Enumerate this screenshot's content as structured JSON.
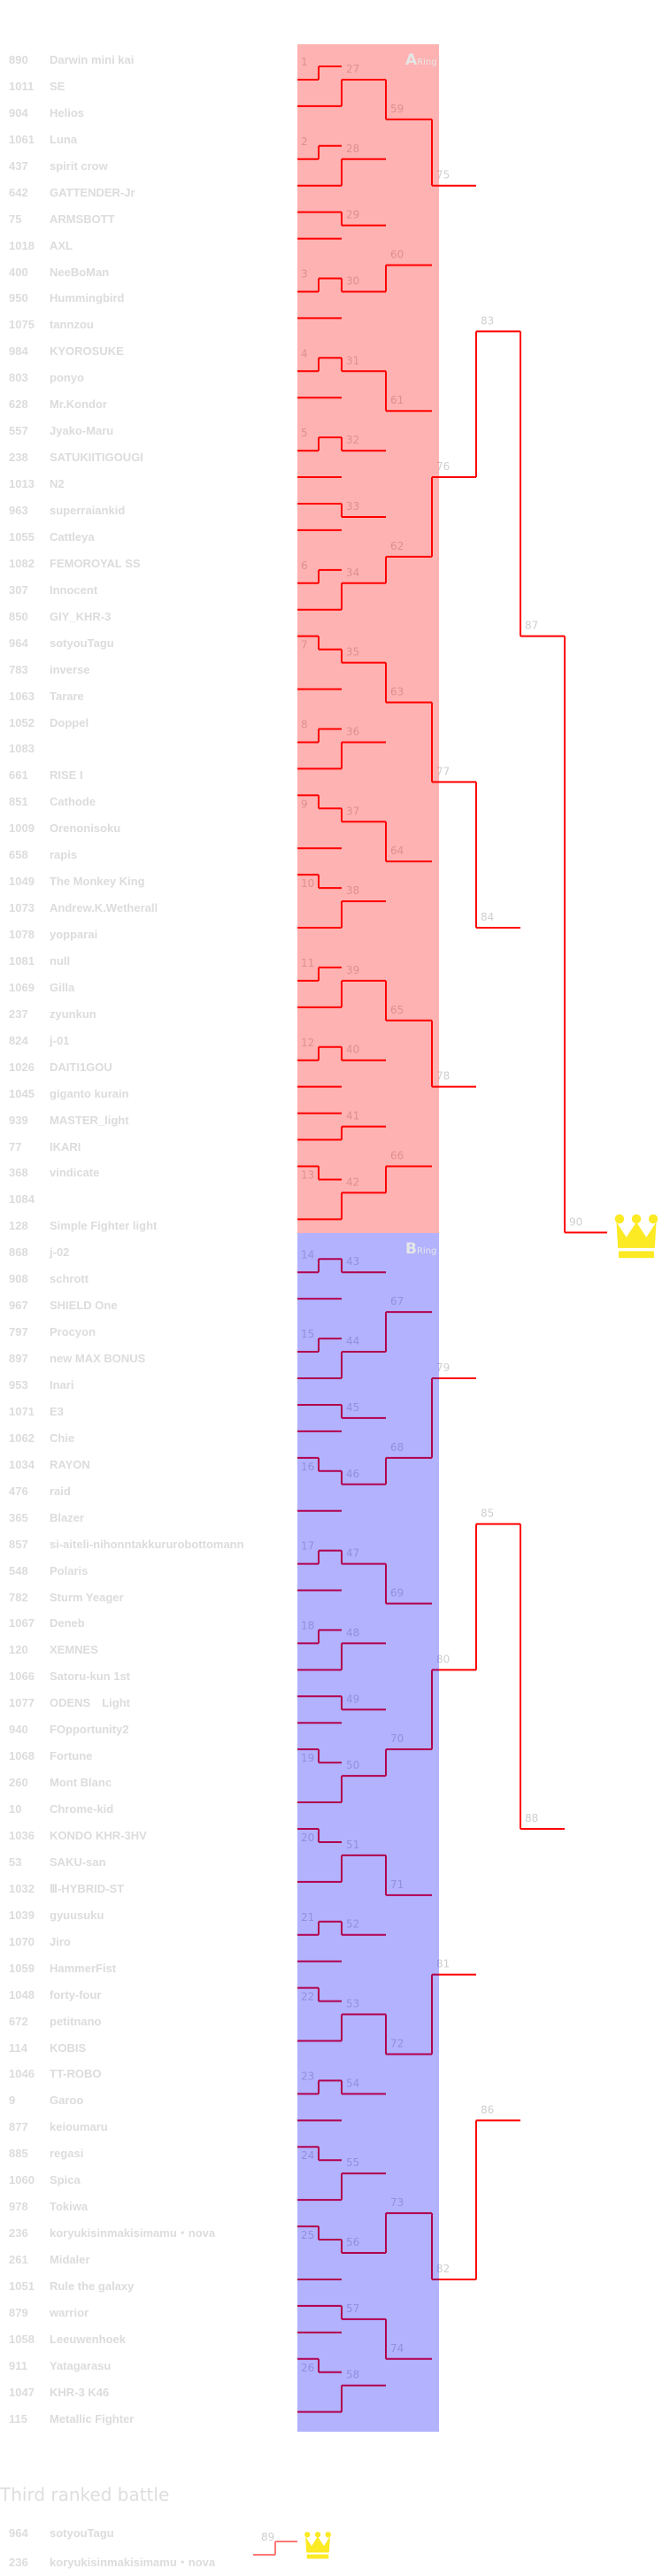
{
  "colors": {
    "line": "#ff0000",
    "third_line": "#ff7878",
    "ring_a": "rgba(255,0,0,0.3)",
    "ring_b": "rgba(0,0,255,0.3)",
    "crown": "#fbea24",
    "label": "#cfcfcf"
  },
  "rings": [
    {
      "letter": "A",
      "label": "Ring"
    },
    {
      "letter": "B",
      "label": "Ring"
    }
  ],
  "entrants": [
    {
      "id": "890",
      "name": "Darwin mini kai"
    },
    {
      "id": "1011",
      "name": "SE"
    },
    {
      "id": "904",
      "name": "Helios"
    },
    {
      "id": "1061",
      "name": "Luna"
    },
    {
      "id": "437",
      "name": "spirit crow"
    },
    {
      "id": "642",
      "name": "GATTENDER-Jr"
    },
    {
      "id": "75",
      "name": "ARMSBOTT"
    },
    {
      "id": "1018",
      "name": "AXL"
    },
    {
      "id": "400",
      "name": "NeeBoMan"
    },
    {
      "id": "950",
      "name": "Hummingbird"
    },
    {
      "id": "1075",
      "name": "tannzou"
    },
    {
      "id": "984",
      "name": "KYOROSUKE"
    },
    {
      "id": "803",
      "name": "ponyo"
    },
    {
      "id": "628",
      "name": "Mr.Kondor"
    },
    {
      "id": "557",
      "name": "Jyako-Maru"
    },
    {
      "id": "238",
      "name": "SATUKIITIGOUGI"
    },
    {
      "id": "1013",
      "name": "N2"
    },
    {
      "id": "963",
      "name": "superraiankid"
    },
    {
      "id": "1055",
      "name": "Cattleya"
    },
    {
      "id": "1082",
      "name": "FEMOROYAL SS"
    },
    {
      "id": "307",
      "name": "Innocent"
    },
    {
      "id": "850",
      "name": "GIY_KHR-3"
    },
    {
      "id": "964",
      "name": "sotyouTagu"
    },
    {
      "id": "783",
      "name": "inverse"
    },
    {
      "id": "1063",
      "name": "Tarare"
    },
    {
      "id": "1052",
      "name": "Doppel"
    },
    {
      "id": "1083",
      "name": ""
    },
    {
      "id": "661",
      "name": "RISE I"
    },
    {
      "id": "851",
      "name": "Cathode"
    },
    {
      "id": "1009",
      "name": "Orenonisoku"
    },
    {
      "id": "658",
      "name": "rapis"
    },
    {
      "id": "1049",
      "name": "The Monkey King"
    },
    {
      "id": "1073",
      "name": "Andrew.K.Wetherall"
    },
    {
      "id": "1078",
      "name": "yopparai"
    },
    {
      "id": "1081",
      "name": "null"
    },
    {
      "id": "1069",
      "name": "Gilla"
    },
    {
      "id": "237",
      "name": "zyunkun"
    },
    {
      "id": "824",
      "name": "j-01"
    },
    {
      "id": "1026",
      "name": "DAITI1GOU"
    },
    {
      "id": "1045",
      "name": "giganto kurain"
    },
    {
      "id": "939",
      "name": "MASTER_light"
    },
    {
      "id": "77",
      "name": "IKARI"
    },
    {
      "id": "368",
      "name": "vindicate"
    },
    {
      "id": "1084",
      "name": ""
    },
    {
      "id": "128",
      "name": "Simple Fighter light"
    },
    {
      "id": "868",
      "name": "j-02"
    },
    {
      "id": "908",
      "name": "schrott"
    },
    {
      "id": "967",
      "name": "SHIELD One"
    },
    {
      "id": "797",
      "name": "Procyon"
    },
    {
      "id": "897",
      "name": "new MAX BONUS"
    },
    {
      "id": "953",
      "name": "Inari"
    },
    {
      "id": "1071",
      "name": "E3"
    },
    {
      "id": "1062",
      "name": "Chie"
    },
    {
      "id": "1034",
      "name": "RAYON"
    },
    {
      "id": "476",
      "name": "raid"
    },
    {
      "id": "365",
      "name": "Blazer"
    },
    {
      "id": "857",
      "name": "si-aiteli-nihonntakkururobottomann"
    },
    {
      "id": "548",
      "name": "Polaris"
    },
    {
      "id": "782",
      "name": "Sturm Yeager"
    },
    {
      "id": "1067",
      "name": "Deneb"
    },
    {
      "id": "120",
      "name": "XEMNES"
    },
    {
      "id": "1066",
      "name": "Satoru-kun 1st"
    },
    {
      "id": "1077",
      "name": "ODENS　Light"
    },
    {
      "id": "940",
      "name": "FOpportunity2"
    },
    {
      "id": "1068",
      "name": "Fortune"
    },
    {
      "id": "260",
      "name": "Mont Blanc"
    },
    {
      "id": "10",
      "name": "Chrome-kid"
    },
    {
      "id": "1036",
      "name": "KONDO KHR-3HV"
    },
    {
      "id": "53",
      "name": "SAKU-san"
    },
    {
      "id": "1032",
      "name": "Ⅲ-HYBRID-ST"
    },
    {
      "id": "1039",
      "name": "gyuusuku"
    },
    {
      "id": "1070",
      "name": "Jiro"
    },
    {
      "id": "1059",
      "name": "HammerFist"
    },
    {
      "id": "1048",
      "name": "forty-four"
    },
    {
      "id": "672",
      "name": "petitnano"
    },
    {
      "id": "114",
      "name": "KOBIS"
    },
    {
      "id": "1046",
      "name": "TT-ROBO"
    },
    {
      "id": "9",
      "name": "Garoo"
    },
    {
      "id": "877",
      "name": "keioumaru"
    },
    {
      "id": "885",
      "name": "regasi"
    },
    {
      "id": "1060",
      "name": "Spica"
    },
    {
      "id": "978",
      "name": "Tokiwa"
    },
    {
      "id": "236",
      "name": "koryukisinmakisimamu・nova"
    },
    {
      "id": "261",
      "name": "Midaler"
    },
    {
      "id": "1051",
      "name": "Rule the galaxy"
    },
    {
      "id": "879",
      "name": "warrior"
    },
    {
      "id": "1058",
      "name": "Leeuwenhoek"
    },
    {
      "id": "911",
      "name": "Yatagarasu"
    },
    {
      "id": "1047",
      "name": "KHR-3 K46"
    },
    {
      "id": "115",
      "name": "Metallic Fighter"
    }
  ],
  "matches": [
    {
      "no": 1,
      "round": 1,
      "a": "e0",
      "b": "e1",
      "winner": 1
    },
    {
      "no": 2,
      "round": 1,
      "a": "e3",
      "b": "e4",
      "winner": 1
    },
    {
      "no": 3,
      "round": 1,
      "a": "e8",
      "b": "e9",
      "winner": 1
    },
    {
      "no": 4,
      "round": 1,
      "a": "e11",
      "b": "e12",
      "winner": 1
    },
    {
      "no": 5,
      "round": 1,
      "a": "e14",
      "b": "e15",
      "winner": 1
    },
    {
      "no": 6,
      "round": 1,
      "a": "e19",
      "b": "e20",
      "winner": 1
    },
    {
      "no": 7,
      "round": 1,
      "a": "e22",
      "b": "e23",
      "winner": 0
    },
    {
      "no": 8,
      "round": 1,
      "a": "e25",
      "b": "e26",
      "winner": 1
    },
    {
      "no": 9,
      "round": 1,
      "a": "e28",
      "b": "e29",
      "winner": 0
    },
    {
      "no": 10,
      "round": 1,
      "a": "e31",
      "b": "e32",
      "winner": 0
    },
    {
      "no": 11,
      "round": 1,
      "a": "e34",
      "b": "e35",
      "winner": 1
    },
    {
      "no": 12,
      "round": 1,
      "a": "e37",
      "b": "e38",
      "winner": 1
    },
    {
      "no": 13,
      "round": 1,
      "a": "e42",
      "b": "e43",
      "winner": 0
    },
    {
      "no": 14,
      "round": 1,
      "a": "e45",
      "b": "e46",
      "winner": 1
    },
    {
      "no": 15,
      "round": 1,
      "a": "e48",
      "b": "e49",
      "winner": 1
    },
    {
      "no": 16,
      "round": 1,
      "a": "e53",
      "b": "e54",
      "winner": 0
    },
    {
      "no": 17,
      "round": 1,
      "a": "e56",
      "b": "e57",
      "winner": 1
    },
    {
      "no": 18,
      "round": 1,
      "a": "e59",
      "b": "e60",
      "winner": 1
    },
    {
      "no": 19,
      "round": 1,
      "a": "e64",
      "b": "e65",
      "winner": 0
    },
    {
      "no": 20,
      "round": 1,
      "a": "e67",
      "b": "e68",
      "winner": 0
    },
    {
      "no": 21,
      "round": 1,
      "a": "e70",
      "b": "e71",
      "winner": 1
    },
    {
      "no": 22,
      "round": 1,
      "a": "e73",
      "b": "e74",
      "winner": 0
    },
    {
      "no": 23,
      "round": 1,
      "a": "e76",
      "b": "e77",
      "winner": 1
    },
    {
      "no": 24,
      "round": 1,
      "a": "e79",
      "b": "e80",
      "winner": 0
    },
    {
      "no": 25,
      "round": 1,
      "a": "e82",
      "b": "e83",
      "winner": 0
    },
    {
      "no": 26,
      "round": 1,
      "a": "e87",
      "b": "e88",
      "winner": 0
    },
    {
      "no": 27,
      "round": 2,
      "a": "m1",
      "b": "e2",
      "winner": 1
    },
    {
      "no": 28,
      "round": 2,
      "a": "m2",
      "b": "e5",
      "winner": 1
    },
    {
      "no": 29,
      "round": 2,
      "a": "e6",
      "b": "e7",
      "winner": 0
    },
    {
      "no": 30,
      "round": 2,
      "a": "m3",
      "b": "e10",
      "winner": 0
    },
    {
      "no": 31,
      "round": 2,
      "a": "m4",
      "b": "e13",
      "winner": 0
    },
    {
      "no": 32,
      "round": 2,
      "a": "m5",
      "b": "e16",
      "winner": 0
    },
    {
      "no": 33,
      "round": 2,
      "a": "e17",
      "b": "e18",
      "winner": 0
    },
    {
      "no": 34,
      "round": 2,
      "a": "m6",
      "b": "e21",
      "winner": 1
    },
    {
      "no": 35,
      "round": 2,
      "a": "m7",
      "b": "e24",
      "winner": 0
    },
    {
      "no": 36,
      "round": 2,
      "a": "m8",
      "b": "e27",
      "winner": 1
    },
    {
      "no": 37,
      "round": 2,
      "a": "m9",
      "b": "e30",
      "winner": 0
    },
    {
      "no": 38,
      "round": 2,
      "a": "m10",
      "b": "e33",
      "winner": 1
    },
    {
      "no": 39,
      "round": 2,
      "a": "m11",
      "b": "e36",
      "winner": 1
    },
    {
      "no": 40,
      "round": 2,
      "a": "m12",
      "b": "e39",
      "winner": 0
    },
    {
      "no": 41,
      "round": 2,
      "a": "e40",
      "b": "e41",
      "winner": 1
    },
    {
      "no": 42,
      "round": 2,
      "a": "m13",
      "b": "e44",
      "winner": 1
    },
    {
      "no": 43,
      "round": 2,
      "a": "m14",
      "b": "e47",
      "winner": 0
    },
    {
      "no": 44,
      "round": 2,
      "a": "m15",
      "b": "e50",
      "winner": 1
    },
    {
      "no": 45,
      "round": 2,
      "a": "e51",
      "b": "e52",
      "winner": 0
    },
    {
      "no": 46,
      "round": 2,
      "a": "m16",
      "b": "e55",
      "winner": 0
    },
    {
      "no": 47,
      "round": 2,
      "a": "m17",
      "b": "e58",
      "winner": 0
    },
    {
      "no": 48,
      "round": 2,
      "a": "m18",
      "b": "e61",
      "winner": 1
    },
    {
      "no": 49,
      "round": 2,
      "a": "e62",
      "b": "e63",
      "winner": 0
    },
    {
      "no": 50,
      "round": 2,
      "a": "m19",
      "b": "e66",
      "winner": 1
    },
    {
      "no": 51,
      "round": 2,
      "a": "m20",
      "b": "e69",
      "winner": 1
    },
    {
      "no": 52,
      "round": 2,
      "a": "m21",
      "b": "e72",
      "winner": 0
    },
    {
      "no": 53,
      "round": 2,
      "a": "m22",
      "b": "e75",
      "winner": 1
    },
    {
      "no": 54,
      "round": 2,
      "a": "m23",
      "b": "e78",
      "winner": 0
    },
    {
      "no": 55,
      "round": 2,
      "a": "m24",
      "b": "e81",
      "winner": 1
    },
    {
      "no": 56,
      "round": 2,
      "a": "m25",
      "b": "e84",
      "winner": 0
    },
    {
      "no": 57,
      "round": 2,
      "a": "e85",
      "b": "e86",
      "winner": 0
    },
    {
      "no": 58,
      "round": 2,
      "a": "m26",
      "b": "e89",
      "winner": 1
    },
    {
      "no": 59,
      "round": 3,
      "a": "m27",
      "b": "m28",
      "winner": 0
    },
    {
      "no": 60,
      "round": 3,
      "a": "m29",
      "b": "m30",
      "winner": 1
    },
    {
      "no": 61,
      "round": 3,
      "a": "m31",
      "b": "m32",
      "winner": 0
    },
    {
      "no": 62,
      "round": 3,
      "a": "m33",
      "b": "m34",
      "winner": 1
    },
    {
      "no": 63,
      "round": 3,
      "a": "m35",
      "b": "m36",
      "winner": 0
    },
    {
      "no": 64,
      "round": 3,
      "a": "m37",
      "b": "m38",
      "winner": 0
    },
    {
      "no": 65,
      "round": 3,
      "a": "m39",
      "b": "m40",
      "winner": 0
    },
    {
      "no": 66,
      "round": 3,
      "a": "m41",
      "b": "m42",
      "winner": 1
    },
    {
      "no": 67,
      "round": 3,
      "a": "m43",
      "b": "m44",
      "winner": 1
    },
    {
      "no": 68,
      "round": 3,
      "a": "m45",
      "b": "m46",
      "winner": 1
    },
    {
      "no": 69,
      "round": 3,
      "a": "m47",
      "b": "m48",
      "winner": 0
    },
    {
      "no": 70,
      "round": 3,
      "a": "m49",
      "b": "m50",
      "winner": 1
    },
    {
      "no": 71,
      "round": 3,
      "a": "m51",
      "b": "m52",
      "winner": 0
    },
    {
      "no": 72,
      "round": 3,
      "a": "m53",
      "b": "m54",
      "winner": 0
    },
    {
      "no": 73,
      "round": 3,
      "a": "m55",
      "b": "m56",
      "winner": 1
    },
    {
      "no": 74,
      "round": 3,
      "a": "m57",
      "b": "m58",
      "winner": 0
    },
    {
      "no": 75,
      "round": 4,
      "a": "m59",
      "b": "m60",
      "winner": 0
    },
    {
      "no": 76,
      "round": 4,
      "a": "m61",
      "b": "m62",
      "winner": 1
    },
    {
      "no": 77,
      "round": 4,
      "a": "m63",
      "b": "m64",
      "winner": 0
    },
    {
      "no": 78,
      "round": 4,
      "a": "m65",
      "b": "m66",
      "winner": 0
    },
    {
      "no": 79,
      "round": 4,
      "a": "m67",
      "b": "m68",
      "winner": 1
    },
    {
      "no": 80,
      "round": 4,
      "a": "m69",
      "b": "m70",
      "winner": 1
    },
    {
      "no": 81,
      "round": 4,
      "a": "m71",
      "b": "m72",
      "winner": 1
    },
    {
      "no": 82,
      "round": 4,
      "a": "m73",
      "b": "m74",
      "winner": 0
    },
    {
      "no": 83,
      "round": 5,
      "a": "m75",
      "b": "m76",
      "winner": 1
    },
    {
      "no": 84,
      "round": 5,
      "a": "m77",
      "b": "m78",
      "winner": 0
    },
    {
      "no": 85,
      "round": 5,
      "a": "m79",
      "b": "m80",
      "winner": 1
    },
    {
      "no": 86,
      "round": 5,
      "a": "m81",
      "b": "m82",
      "winner": 1
    },
    {
      "no": 87,
      "round": 6,
      "a": "m83",
      "b": "m84",
      "winner": 0
    },
    {
      "no": 88,
      "round": 6,
      "a": "m85",
      "b": "m86",
      "winner": 0
    },
    {
      "no": 90,
      "round": 7,
      "a": "m87",
      "b": "m88",
      "winner": 0
    }
  ],
  "final_match": 90,
  "third_place": {
    "title": "Third ranked battle",
    "match_no": "89",
    "entrants": [
      {
        "id": "964",
        "name": "sotyouTagu"
      },
      {
        "id": "236",
        "name": "koryukisinmakisimamu・nova"
      }
    ],
    "winner": 1
  },
  "icons": {
    "champion": "crown-icon",
    "third": "crown-icon"
  }
}
